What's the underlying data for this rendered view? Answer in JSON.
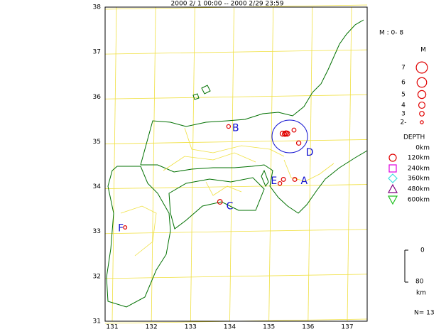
{
  "title": "2000 2/ 1 00:00 -- 2000 2/29 23:59",
  "lat_ticks": [
    31,
    32,
    33,
    34,
    35,
    36,
    37,
    38
  ],
  "lon_ticks": [
    131,
    132,
    133,
    134,
    135,
    136,
    137
  ],
  "grid_color": "#f0e040",
  "event_color": "#e00000",
  "events": [
    {
      "lon": 135.35,
      "lat": 35.18,
      "mag": 3.2
    },
    {
      "lon": 135.4,
      "lat": 35.17,
      "mag": 2.8
    },
    {
      "lon": 135.42,
      "lat": 35.18,
      "mag": 3.4
    },
    {
      "lon": 135.44,
      "lat": 35.19,
      "mag": 3.0
    },
    {
      "lon": 135.47,
      "lat": 35.18,
      "mag": 3.2
    },
    {
      "lon": 135.64,
      "lat": 35.26,
      "mag": 2.6
    },
    {
      "lon": 135.76,
      "lat": 34.97,
      "mag": 2.8
    },
    {
      "lon": 133.97,
      "lat": 35.34,
      "mag": 2.4
    },
    {
      "lon": 135.37,
      "lat": 34.16,
      "mag": 2.6
    },
    {
      "lon": 135.28,
      "lat": 34.07,
      "mag": 2.4
    },
    {
      "lon": 135.66,
      "lat": 34.16,
      "mag": 2.6
    },
    {
      "lon": 133.75,
      "lat": 33.66,
      "mag": 3.0
    },
    {
      "lon": 131.33,
      "lat": 33.09,
      "mag": 2.2
    }
  ],
  "region_labels": [
    {
      "text": "B",
      "lon": 134.15,
      "lat": 35.3
    },
    {
      "text": "D",
      "lon": 136.04,
      "lat": 34.75
    },
    {
      "text": "E",
      "lon": 135.13,
      "lat": 34.12
    },
    {
      "text": "A",
      "lon": 135.9,
      "lat": 34.12
    },
    {
      "text": "C",
      "lon": 134.0,
      "lat": 33.56
    },
    {
      "text": "F",
      "lon": 131.22,
      "lat": 33.07
    }
  ],
  "legend": {
    "mag_range": "M : 0- 8",
    "mag_title": "M",
    "mags": [
      7,
      6,
      5,
      4,
      3,
      {
        "value": 2,
        "label": "2-"
      }
    ],
    "depth_title": "DEPTH",
    "depths": [
      "0km",
      "120km",
      "240km",
      "360km",
      "480km",
      "600km"
    ],
    "depth_symbols": [
      {
        "shape": "circle",
        "color": "#e00000"
      },
      {
        "shape": "square",
        "color": "#e000e0"
      },
      {
        "shape": "diamond",
        "color": "#40e0e0"
      },
      {
        "shape": "triangle",
        "color": "#800080"
      },
      {
        "shape": "down-triangle",
        "color": "#20c020"
      }
    ],
    "scale_top": "0",
    "scale_bottom": "80",
    "scale_unit": "km"
  },
  "count": "N= 13"
}
